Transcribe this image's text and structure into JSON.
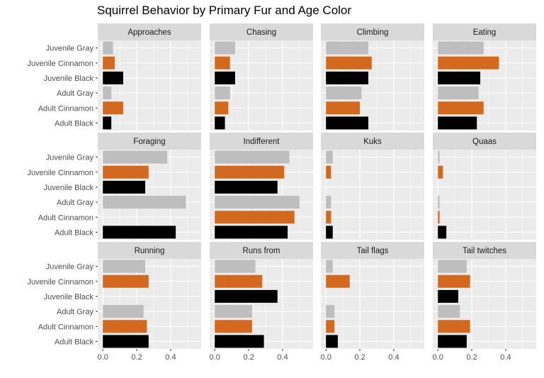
{
  "title": "Squirrel Behavior by Primary Fur and Age Color",
  "chart_data": {
    "type": "bar",
    "orientation": "horizontal",
    "facet_layout": "3x4 grid",
    "title": "Squirrel Behavior by Primary Fur and Age Color",
    "categories": [
      "Juvenile Gray",
      "Juvenile Cinnamon",
      "Juvenile Black",
      "Adult Gray",
      "Adult Cinnamon",
      "Adult Black"
    ],
    "xlim": [
      -0.03,
      0.58
    ],
    "x_ticks": [
      "0.0",
      "0.2",
      "0.4"
    ],
    "colors": {
      "Juvenile Gray": "#bebebe",
      "Juvenile Cinnamon": "#d2691e",
      "Juvenile Black": "#000000",
      "Adult Gray": "#bebebe",
      "Adult Cinnamon": "#d2691e",
      "Adult Black": "#000000"
    },
    "panel_background": "#ebebeb",
    "strip_background": "#d9d9d9",
    "grid": true,
    "legend": "none",
    "panels": [
      {
        "name": "Approaches",
        "values": [
          0.06,
          0.07,
          0.12,
          0.05,
          0.12,
          0.05
        ]
      },
      {
        "name": "Chasing",
        "values": [
          0.12,
          0.09,
          0.12,
          0.09,
          0.08,
          0.06
        ]
      },
      {
        "name": "Climbing",
        "values": [
          0.25,
          0.27,
          0.25,
          0.21,
          0.2,
          0.25
        ]
      },
      {
        "name": "Eating",
        "values": [
          0.27,
          0.36,
          0.25,
          0.24,
          0.27,
          0.23
        ]
      },
      {
        "name": "Foraging",
        "values": [
          0.38,
          0.27,
          0.25,
          0.49,
          0.0,
          0.43
        ]
      },
      {
        "name": "Indifferent",
        "values": [
          0.44,
          0.41,
          0.37,
          0.5,
          0.47,
          0.43
        ]
      },
      {
        "name": "Kuks",
        "values": [
          0.04,
          0.03,
          0.0,
          0.03,
          0.03,
          0.04
        ]
      },
      {
        "name": "Quaas",
        "values": [
          0.01,
          0.03,
          0.0,
          0.01,
          0.01,
          0.05
        ]
      },
      {
        "name": "Running",
        "values": [
          0.25,
          0.27,
          0.0,
          0.24,
          0.26,
          0.27
        ]
      },
      {
        "name": "Runs from",
        "values": [
          0.24,
          0.28,
          0.37,
          0.22,
          0.22,
          0.29
        ]
      },
      {
        "name": "Tail flags",
        "values": [
          0.04,
          0.14,
          0.0,
          0.05,
          0.05,
          0.07
        ]
      },
      {
        "name": "Tail twitches",
        "values": [
          0.17,
          0.19,
          0.12,
          0.13,
          0.19,
          0.17
        ]
      }
    ]
  }
}
